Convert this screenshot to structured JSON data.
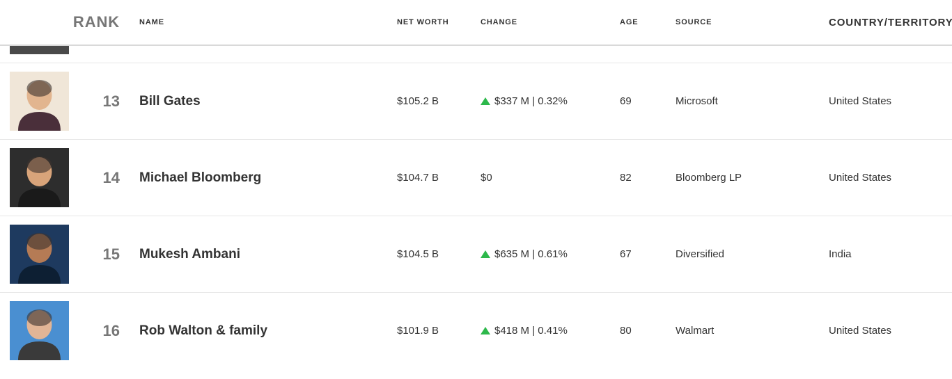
{
  "columns": {
    "rank": "RANK",
    "name": "NAME",
    "netWorth": "NET WORTH",
    "change": "CHANGE",
    "age": "AGE",
    "source": "SOURCE",
    "country": "COUNTRY/TERRITORY"
  },
  "rows": [
    {
      "rank": "13",
      "name": "Bill Gates",
      "netWorth": "$105.2 B",
      "changeDirection": "up",
      "changeText": "$337 M | 0.32%",
      "age": "69",
      "source": "Microsoft",
      "country": "United States",
      "avatarBg": "#f0e6d8",
      "avatarSkin": "#e2b58f",
      "avatarCloth": "#4a2f3a"
    },
    {
      "rank": "14",
      "name": "Michael Bloomberg",
      "netWorth": "$104.7 B",
      "changeDirection": "none",
      "changeText": "$0",
      "age": "82",
      "source": "Bloomberg LP",
      "country": "United States",
      "avatarBg": "#2d2d2d",
      "avatarSkin": "#d9a47a",
      "avatarCloth": "#1a1a1a"
    },
    {
      "rank": "15",
      "name": "Mukesh Ambani",
      "netWorth": "$104.5 B",
      "changeDirection": "up",
      "changeText": "$635 M | 0.61%",
      "age": "67",
      "source": "Diversified",
      "country": "India",
      "avatarBg": "#1e3a5f",
      "avatarSkin": "#b57b55",
      "avatarCloth": "#0d1f33"
    },
    {
      "rank": "16",
      "name": "Rob Walton & family",
      "netWorth": "$101.9 B",
      "changeDirection": "up",
      "changeText": "$418 M | 0.41%",
      "age": "80",
      "source": "Walmart",
      "country": "United States",
      "avatarBg": "#4a8fd1",
      "avatarSkin": "#e2b596",
      "avatarCloth": "#3a3a3a"
    }
  ]
}
